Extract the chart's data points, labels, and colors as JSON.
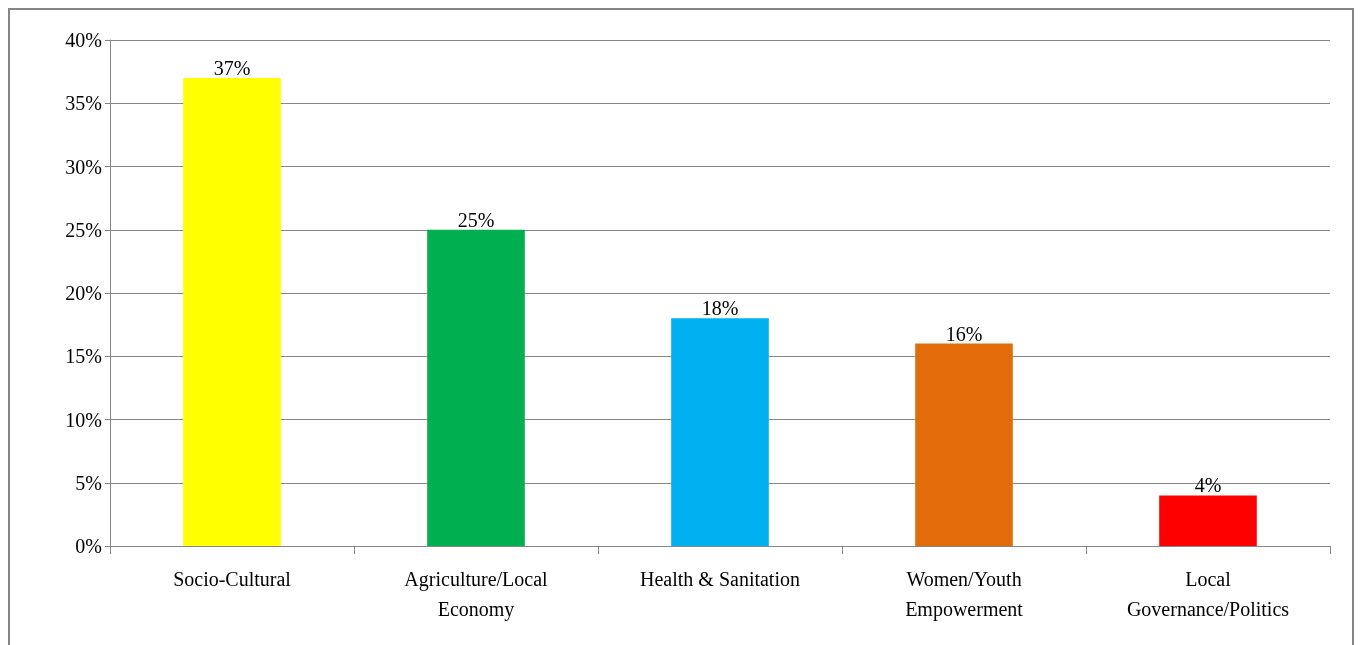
{
  "chart_data": {
    "type": "bar",
    "categories": [
      "Socio-Cultural",
      "Agriculture/Local Economy",
      "Health & Sanitation",
      "Women/Youth Empowerment",
      "Local Governance/Politics"
    ],
    "values": [
      37,
      25,
      18,
      16,
      4
    ],
    "colors": [
      "#ffff00",
      "#00b050",
      "#00b0f0",
      "#e36c0a",
      "#ff0000"
    ],
    "value_labels": [
      "37%",
      "25%",
      "18%",
      "16%",
      "4%"
    ],
    "ylim": [
      0,
      40
    ],
    "yticks": [
      {
        "value": 0,
        "label": "0%"
      },
      {
        "value": 5,
        "label": "5%"
      },
      {
        "value": 10,
        "label": "10%"
      },
      {
        "value": 15,
        "label": "15%"
      },
      {
        "value": 20,
        "label": "20%"
      },
      {
        "value": 25,
        "label": "25%"
      },
      {
        "value": 30,
        "label": "30%"
      },
      {
        "value": 35,
        "label": "35%"
      },
      {
        "value": 40,
        "label": "40%"
      }
    ],
    "grid": "y"
  }
}
